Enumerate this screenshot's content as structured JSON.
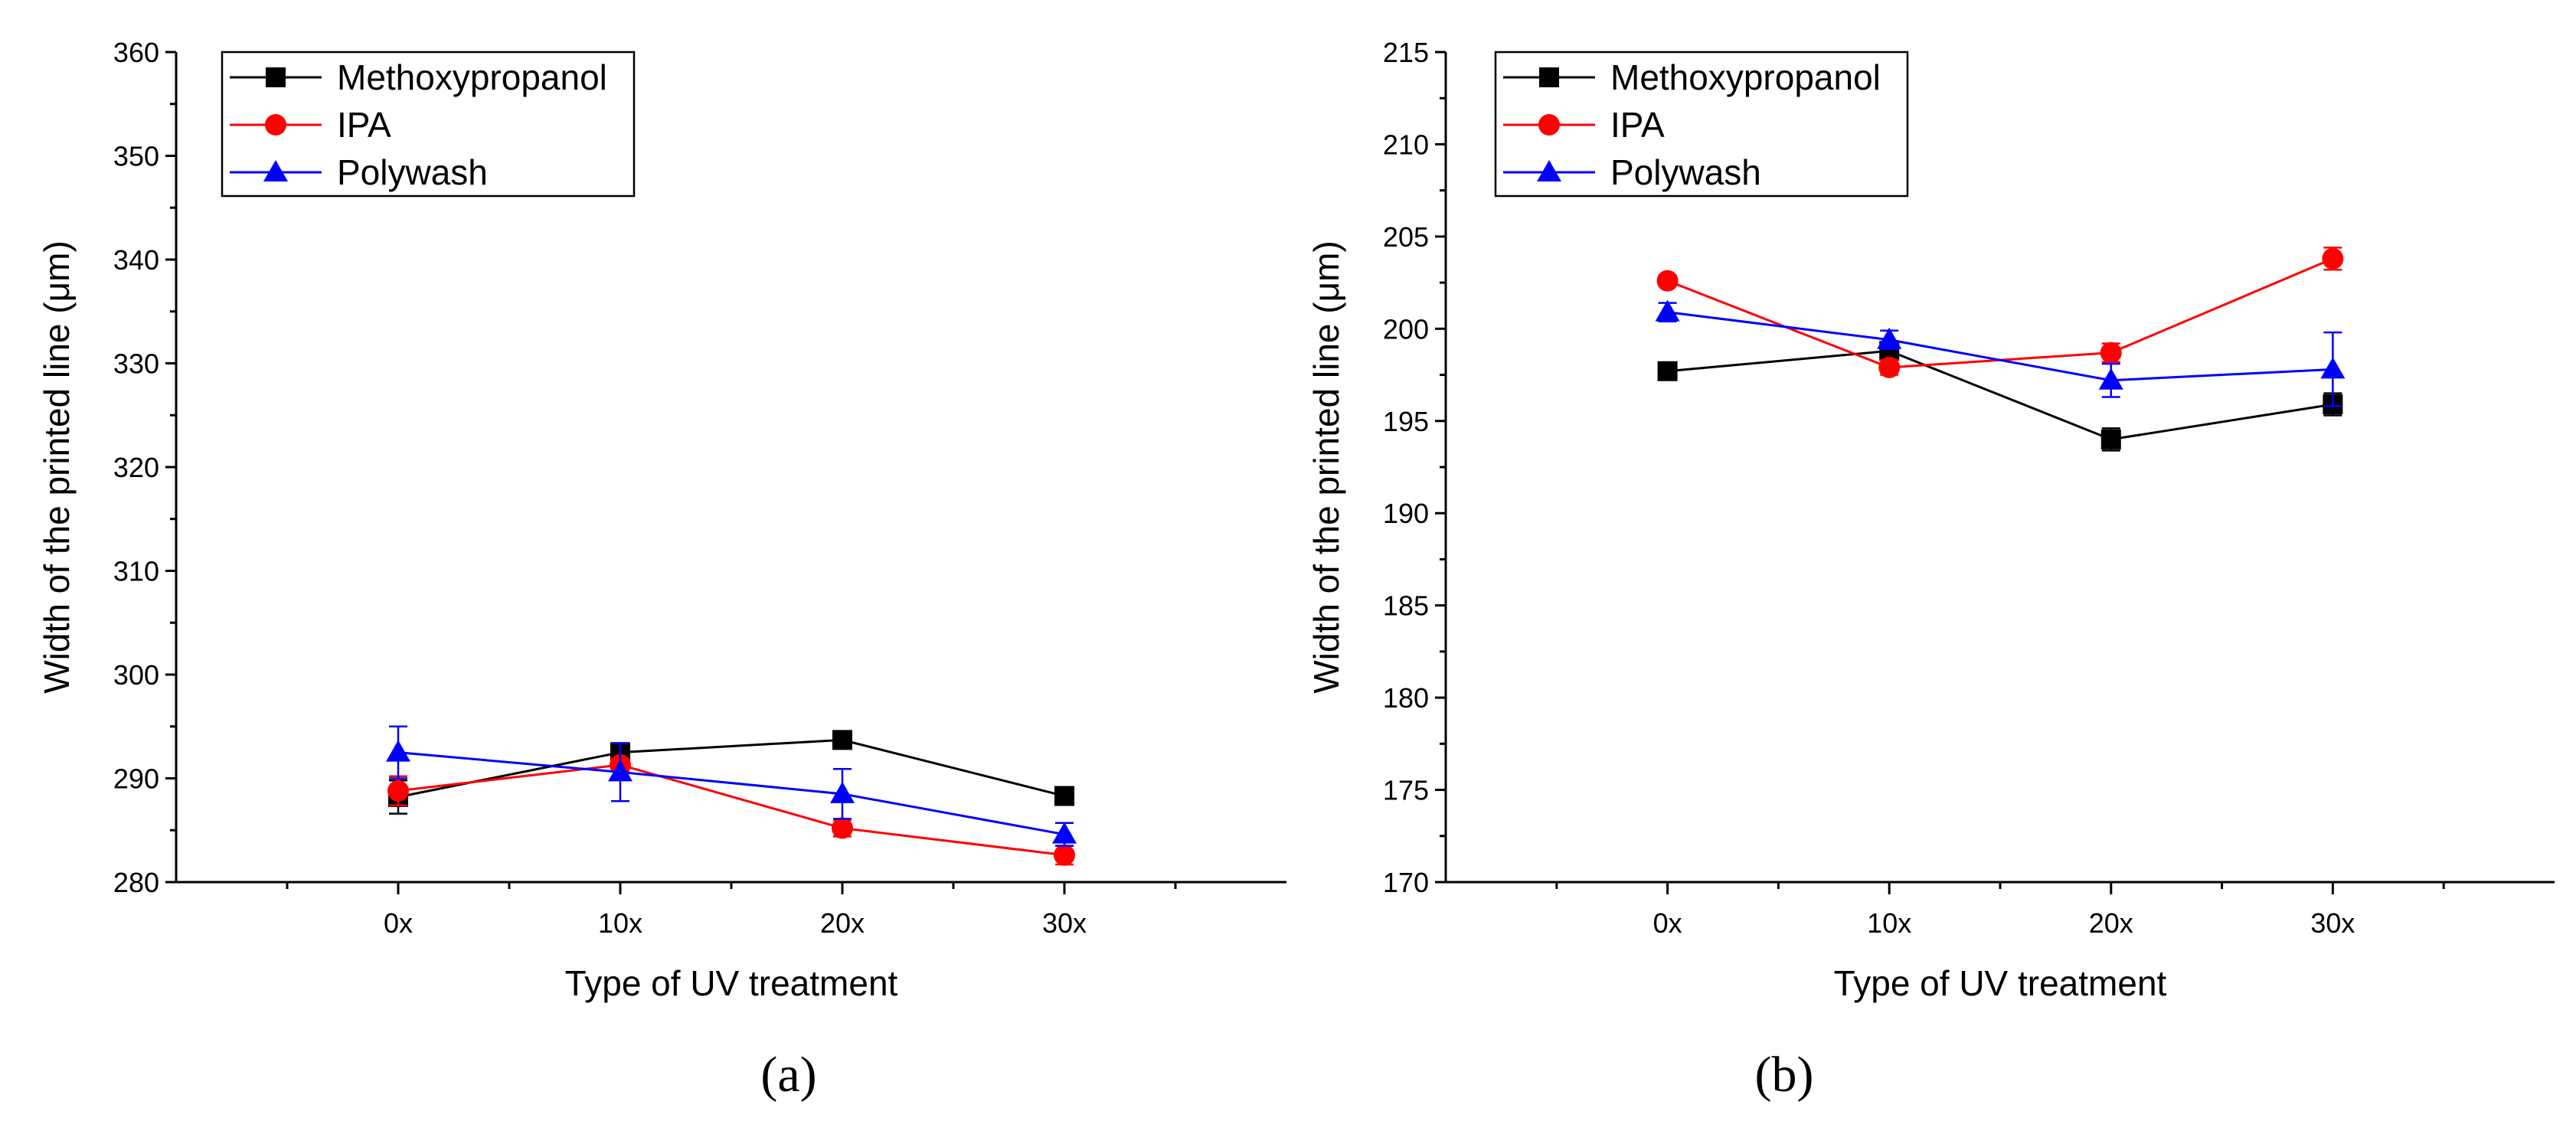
{
  "chart_data": [
    {
      "type": "line",
      "panel_label": "(a)",
      "xlabel": "Type of UV treatment",
      "ylabel": "Width of the printed line (μm)",
      "categories": [
        "0x",
        "10x",
        "20x",
        "30x"
      ],
      "ylim": [
        280,
        360
      ],
      "yticks": [
        280,
        290,
        300,
        310,
        320,
        330,
        340,
        350,
        360
      ],
      "legend_position": "top-left",
      "series": [
        {
          "name": "Methoxypropanol",
          "color": "#000000",
          "marker": "square",
          "values": [
            288.2,
            292.5,
            293.7,
            288.3
          ],
          "errors": [
            1.6,
            0.5,
            0.7,
            0.6
          ]
        },
        {
          "name": "IPA",
          "color": "#ff0000",
          "marker": "circle",
          "values": [
            288.8,
            291.3,
            285.2,
            282.6
          ],
          "errors": [
            1.4,
            0.6,
            0.8,
            0.9
          ]
        },
        {
          "name": "Polywash",
          "color": "#0000ff",
          "marker": "triangle",
          "values": [
            292.5,
            290.6,
            288.5,
            284.6
          ],
          "errors": [
            2.5,
            2.8,
            2.4,
            1.1
          ]
        }
      ]
    },
    {
      "type": "line",
      "panel_label": "(b)",
      "xlabel": "Type of UV treatment",
      "ylabel": "Width of the printed line (μm)",
      "categories": [
        "0x",
        "10x",
        "20x",
        "30x"
      ],
      "ylim": [
        170,
        215
      ],
      "yticks": [
        170,
        175,
        180,
        185,
        190,
        195,
        200,
        205,
        210,
        215
      ],
      "legend_position": "top-left",
      "series": [
        {
          "name": "Methoxypropanol",
          "color": "#000000",
          "marker": "square",
          "values": [
            197.7,
            198.8,
            194.0,
            195.9
          ],
          "errors": [
            0.3,
            0.4,
            0.6,
            0.6
          ]
        },
        {
          "name": "IPA",
          "color": "#ff0000",
          "marker": "circle",
          "values": [
            202.6,
            197.9,
            198.7,
            203.8
          ],
          "errors": [
            0.3,
            0.4,
            0.5,
            0.6
          ]
        },
        {
          "name": "Polywash",
          "color": "#0000ff",
          "marker": "triangle",
          "values": [
            200.9,
            199.4,
            197.2,
            197.8
          ],
          "errors": [
            0.5,
            0.5,
            0.9,
            2.0
          ]
        }
      ]
    }
  ]
}
